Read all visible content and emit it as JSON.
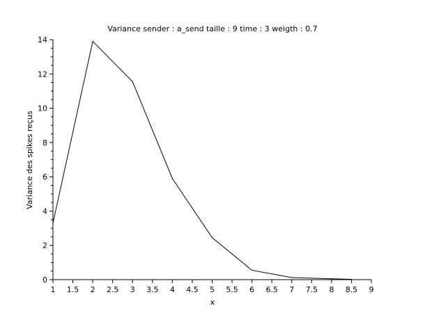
{
  "chart_data": {
    "type": "line",
    "title": "Variance sender : a_send taille : 9 time : 3 weigth : 0.7",
    "xlabel": "x",
    "ylabel": "Variance des spikes reçus",
    "xlim": [
      1,
      9
    ],
    "ylim": [
      0,
      14
    ],
    "x_ticks": [
      "1",
      "1.5",
      "2",
      "2.5",
      "3",
      "3.5",
      "4",
      "4.5",
      "5",
      "5.5",
      "6",
      "6.5",
      "7",
      "7.5",
      "8",
      "8.5",
      "9"
    ],
    "y_ticks": [
      "0",
      "2",
      "4",
      "6",
      "8",
      "10",
      "12",
      "14"
    ],
    "grid": false,
    "series": [
      {
        "x": [
          1,
          2,
          3,
          4,
          5,
          6,
          7,
          8,
          8.5
        ],
        "values": [
          3.3,
          13.9,
          11.55,
          5.9,
          2.45,
          0.55,
          0.12,
          0.05,
          0.02
        ],
        "color": "#000000"
      }
    ]
  }
}
